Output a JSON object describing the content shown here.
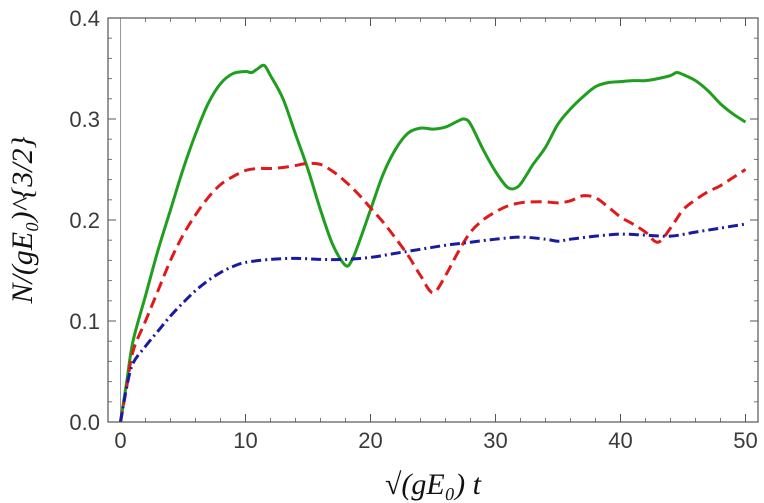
{
  "chart_data": {
    "type": "line",
    "title": "",
    "xlabel": "√(gE₀) t",
    "ylabel": "N/(gE₀)^{3/2}",
    "xlim": [
      -1,
      51
    ],
    "ylim": [
      0,
      0.4
    ],
    "xticks": [
      0,
      10,
      20,
      30,
      40,
      50
    ],
    "yticks": [
      0.0,
      0.1,
      0.2,
      0.3,
      0.4
    ],
    "xtick_labels": [
      "0",
      "10",
      "20",
      "30",
      "40",
      "50"
    ],
    "ytick_labels": [
      "0.0",
      "0.1",
      "0.2",
      "0.3",
      "0.4"
    ],
    "grid": false,
    "legend": "none",
    "series": [
      {
        "name": "green-solid",
        "color": "#1f9e1f",
        "style": "solid",
        "x": [
          0,
          0.5,
          1,
          2,
          3,
          4,
          5,
          6,
          7,
          8,
          9,
          10,
          10.5,
          11,
          11.5,
          12,
          13,
          14,
          15,
          16,
          17,
          18,
          18.5,
          19,
          20,
          21,
          22,
          23,
          24,
          25,
          26,
          27,
          27.5,
          28,
          29,
          30,
          31,
          31.8,
          32.5,
          33,
          34,
          35,
          36,
          37,
          38,
          39,
          40,
          41,
          42,
          43,
          44,
          44.5,
          45,
          46,
          47,
          48,
          49,
          50
        ],
        "y": [
          0,
          0.04,
          0.08,
          0.125,
          0.17,
          0.21,
          0.25,
          0.285,
          0.315,
          0.335,
          0.345,
          0.347,
          0.346,
          0.35,
          0.353,
          0.343,
          0.32,
          0.285,
          0.25,
          0.21,
          0.175,
          0.155,
          0.16,
          0.175,
          0.21,
          0.245,
          0.27,
          0.286,
          0.291,
          0.29,
          0.292,
          0.298,
          0.3,
          0.295,
          0.27,
          0.248,
          0.232,
          0.233,
          0.245,
          0.255,
          0.272,
          0.295,
          0.31,
          0.322,
          0.332,
          0.336,
          0.337,
          0.338,
          0.338,
          0.34,
          0.343,
          0.346,
          0.344,
          0.338,
          0.328,
          0.315,
          0.305,
          0.297
        ]
      },
      {
        "name": "red-dashed",
        "color": "#e01a1a",
        "style": "dashed",
        "x": [
          0,
          0.5,
          1,
          2,
          3,
          4,
          5,
          6,
          7,
          8,
          9,
          10,
          11,
          12,
          13,
          14,
          15,
          16,
          17,
          18,
          19,
          20,
          21,
          22,
          23,
          24,
          25,
          26,
          27,
          28,
          29,
          30,
          31,
          32,
          33,
          34,
          35,
          36,
          37,
          38,
          39,
          40,
          41,
          42,
          43,
          44,
          45,
          46,
          47,
          48,
          49,
          50
        ],
        "y": [
          0,
          0.035,
          0.07,
          0.1,
          0.13,
          0.16,
          0.185,
          0.205,
          0.222,
          0.235,
          0.243,
          0.249,
          0.251,
          0.251,
          0.252,
          0.254,
          0.256,
          0.255,
          0.248,
          0.238,
          0.226,
          0.212,
          0.198,
          0.182,
          0.165,
          0.145,
          0.128,
          0.145,
          0.168,
          0.188,
          0.2,
          0.208,
          0.214,
          0.217,
          0.218,
          0.218,
          0.217,
          0.219,
          0.224,
          0.222,
          0.213,
          0.203,
          0.196,
          0.188,
          0.178,
          0.192,
          0.21,
          0.22,
          0.228,
          0.234,
          0.242,
          0.25
        ]
      },
      {
        "name": "blue-dashdot",
        "color": "#1a1aa0",
        "style": "dashdot",
        "x": [
          0,
          0.5,
          1,
          2,
          3,
          4,
          5,
          6,
          7,
          8,
          9,
          10,
          12,
          14,
          16,
          18,
          20,
          22,
          24,
          26,
          28,
          30,
          32,
          34,
          35,
          36,
          38,
          40,
          42,
          44,
          46,
          48,
          50
        ],
        "y": [
          0,
          0.035,
          0.058,
          0.075,
          0.09,
          0.105,
          0.118,
          0.13,
          0.14,
          0.148,
          0.154,
          0.158,
          0.161,
          0.162,
          0.161,
          0.161,
          0.163,
          0.167,
          0.171,
          0.175,
          0.178,
          0.181,
          0.183,
          0.181,
          0.179,
          0.181,
          0.184,
          0.186,
          0.185,
          0.184,
          0.188,
          0.192,
          0.196
        ]
      }
    ]
  }
}
